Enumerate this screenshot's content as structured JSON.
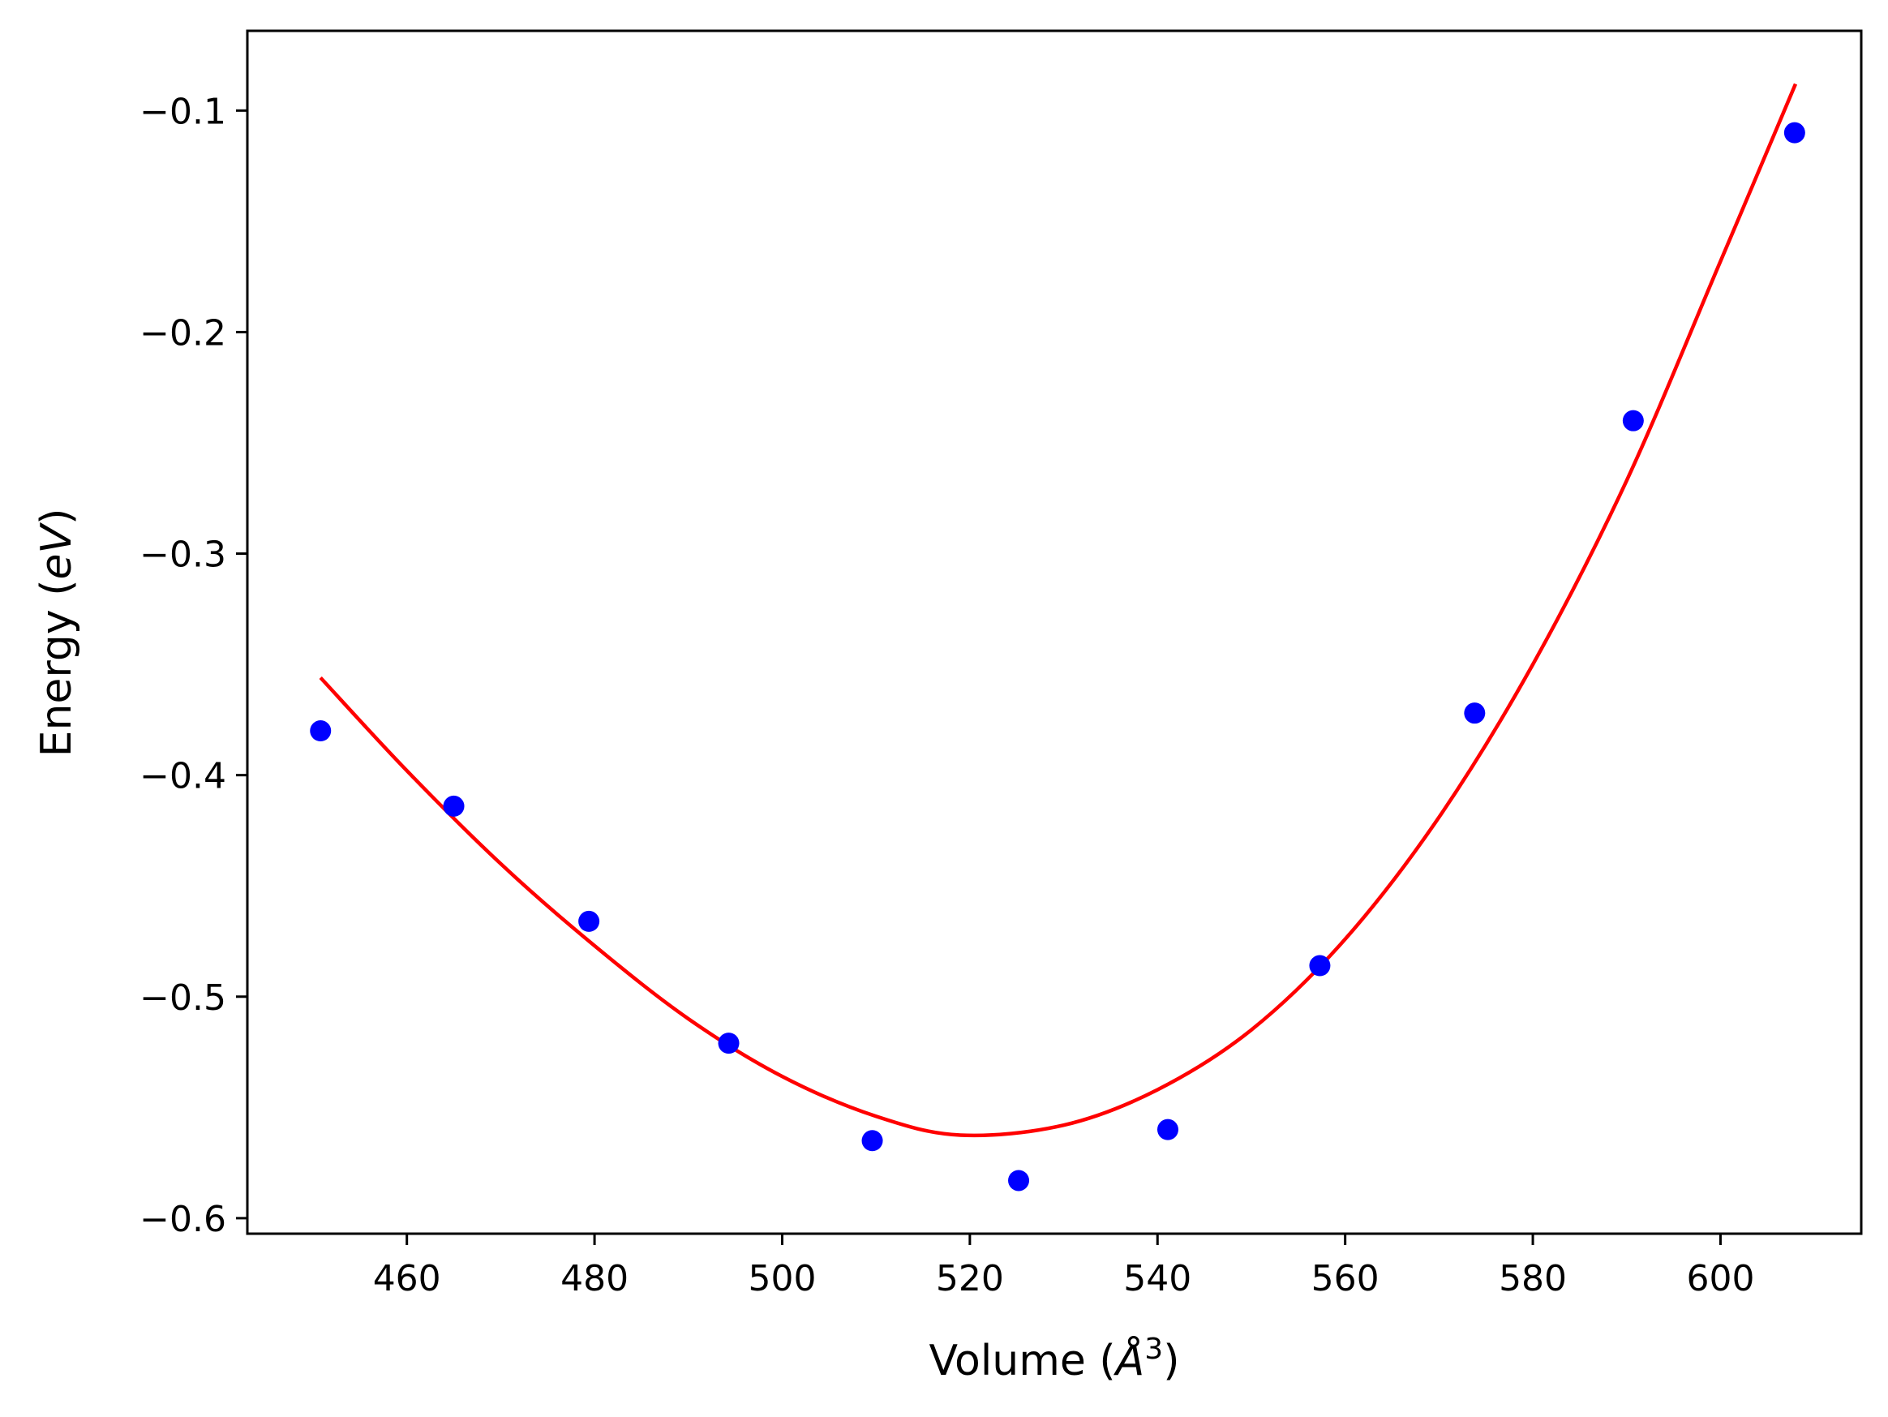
{
  "chart_data": {
    "type": "scatter",
    "xlabel": "Volume (",
    "xlabel_symbol": "Å",
    "xlabel_exponent": "3",
    "xlabel_close": ")",
    "ylabel": "Energy (",
    "ylabel_unit": "eV",
    "ylabel_close": ")",
    "xlim": [
      443,
      615
    ],
    "ylim": [
      -0.607,
      -0.064
    ],
    "xticks": [
      460,
      480,
      500,
      520,
      540,
      560,
      580,
      600
    ],
    "xtick_labels": [
      "460",
      "480",
      "500",
      "520",
      "540",
      "560",
      "580",
      "600"
    ],
    "yticks": [
      -0.6,
      -0.5,
      -0.4,
      -0.3,
      -0.2,
      -0.1
    ],
    "ytick_labels": [
      "−0.6",
      "−0.5",
      "−0.4",
      "−0.3",
      "−0.2",
      "−0.1"
    ],
    "grid": false,
    "series": [
      {
        "kind": "scatter",
        "color": "#0000ff",
        "x": [
          450.8,
          465.0,
          479.4,
          494.3,
          509.6,
          525.2,
          541.1,
          557.3,
          573.8,
          590.7,
          607.9
        ],
        "y": [
          -0.38,
          -0.414,
          -0.466,
          -0.521,
          -0.565,
          -0.583,
          -0.56,
          -0.486,
          -0.372,
          -0.24,
          -0.11
        ]
      },
      {
        "kind": "line",
        "color": "#ff0000",
        "x": [
          450.8,
          460,
          470,
          480,
          490,
          500,
          510,
          519,
          530,
          540,
          550,
          560,
          570,
          580,
          590,
          600,
          608.0
        ],
        "y": [
          -0.356,
          -0.398,
          -0.44,
          -0.477,
          -0.51,
          -0.536,
          -0.554,
          -0.5625,
          -0.558,
          -0.542,
          -0.515,
          -0.474,
          -0.419,
          -0.35,
          -0.267,
          -0.168,
          -0.088
        ]
      }
    ]
  }
}
